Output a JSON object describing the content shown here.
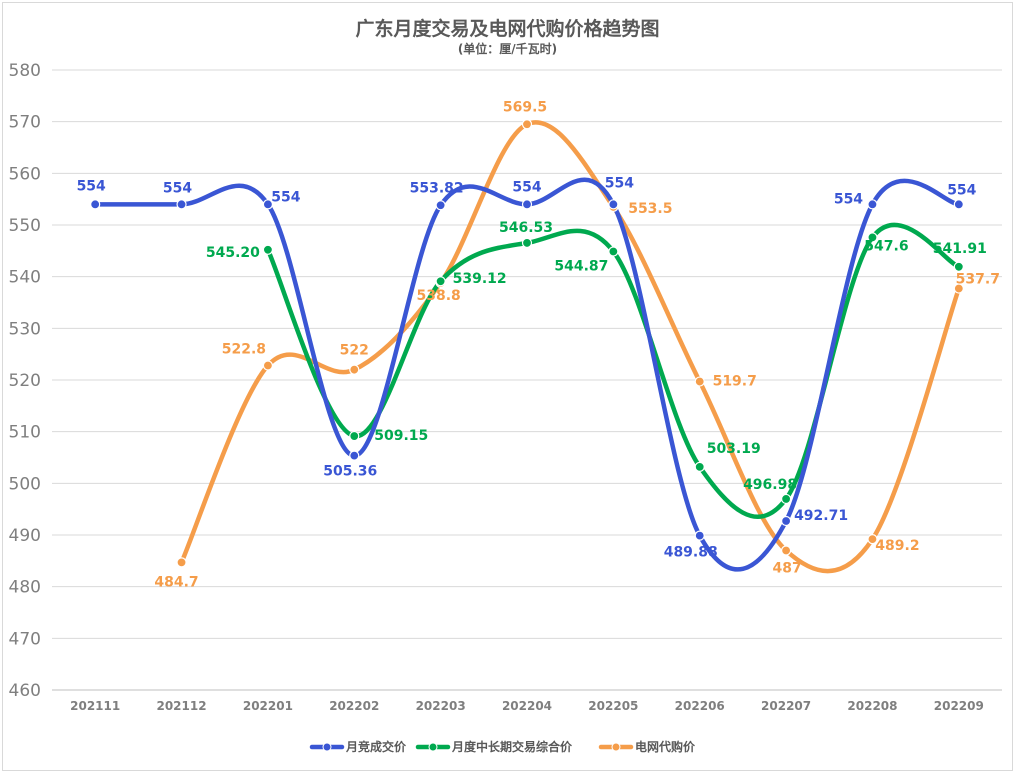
{
  "chart_data": {
    "type": "line",
    "title": "广东月度交易及电网代购价格趋势图",
    "subtitle": "(单位：厘/千瓦时)",
    "categories": [
      "202111",
      "202112",
      "202201",
      "202202",
      "202203",
      "202204",
      "202205",
      "202206",
      "202207",
      "202208",
      "202209"
    ],
    "ylim": [
      460,
      580
    ],
    "yticks": [
      460,
      470,
      480,
      490,
      500,
      510,
      520,
      530,
      540,
      550,
      560,
      570,
      580
    ],
    "grid": true,
    "legend_position": "bottom",
    "series": [
      {
        "name": "月竞成交价",
        "color": "#3a56d4",
        "values": [
          554,
          554,
          554,
          505.36,
          553.82,
          554,
          554,
          489.88,
          492.71,
          554,
          554
        ],
        "labels": [
          "554",
          "554",
          "554",
          "505.36",
          "553.82",
          "554",
          "554",
          "489.88",
          "492.71",
          "554",
          "554"
        ]
      },
      {
        "name": "月度中长期交易综合价",
        "color": "#00a94f",
        "values": [
          null,
          null,
          545.2,
          509.15,
          539.12,
          546.53,
          544.87,
          503.19,
          496.98,
          547.6,
          541.91
        ],
        "labels": [
          null,
          null,
          "545.20",
          "509.15",
          "539.12",
          "546.53",
          "544.87",
          "503.19",
          "496.98",
          "547.6",
          "541.91"
        ]
      },
      {
        "name": "电网代购价",
        "color": "#f59d4a",
        "values": [
          null,
          484.7,
          522.8,
          522,
          538.8,
          569.5,
          553.5,
          519.7,
          487,
          489.2,
          537.7
        ],
        "labels": [
          null,
          "484.7",
          "522.8",
          "522",
          "538.8",
          "569.5",
          "553.5",
          "519.7",
          "487",
          "489.2",
          "537.7"
        ]
      }
    ]
  }
}
